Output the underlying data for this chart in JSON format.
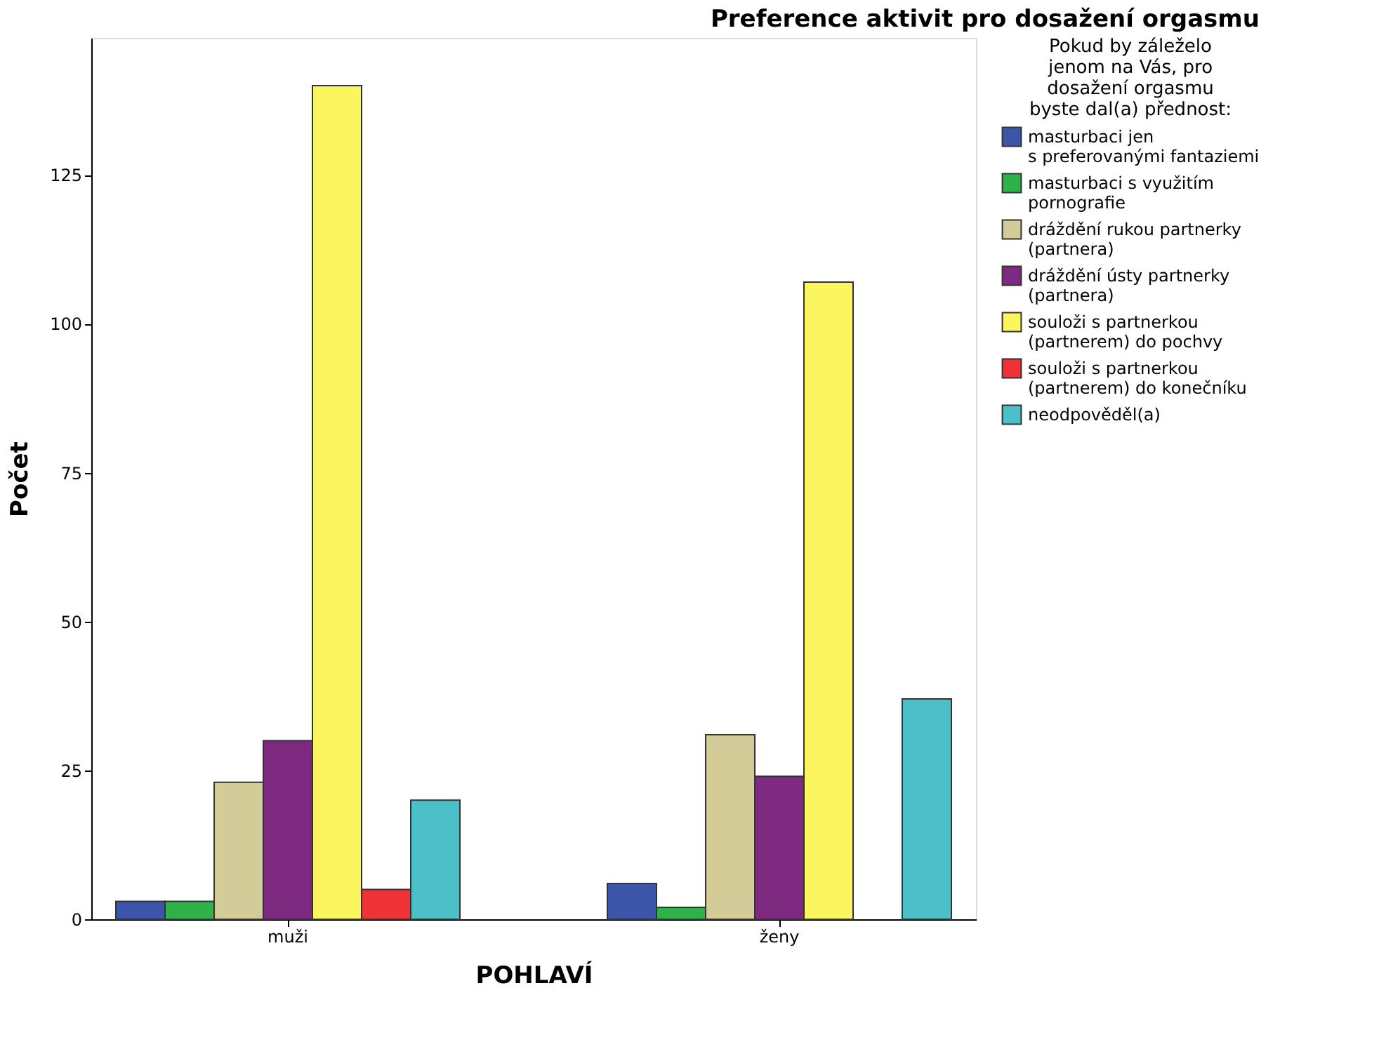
{
  "chart_data": {
    "type": "bar",
    "title": "Preference aktivit pro dosažení orgasmu",
    "xlabel": "POHLAVÍ",
    "ylabel": "Počet",
    "legend_title": "Pokud by záleželo\njenom na Vás, pro\ndosažení orgasmu\nbyste dal(a) přednost:",
    "categories": [
      "muži",
      "ženy"
    ],
    "series": [
      {
        "name": "masturbaci jen\ns preferovanými fantaziemi",
        "color": "#3b55a8",
        "values": [
          3,
          6
        ]
      },
      {
        "name": "masturbaci s využitím\npornografie",
        "color": "#2fb24a",
        "values": [
          3,
          2
        ]
      },
      {
        "name": "dráždění rukou partnerky\n(partnera)",
        "color": "#d3cc98",
        "values": [
          23,
          31
        ]
      },
      {
        "name": "dráždění ústy partnerky\n(partnera)",
        "color": "#7e2a80",
        "values": [
          30,
          24
        ]
      },
      {
        "name": "souloži s partnerkou\n(partnerem) do pochvy",
        "color": "#fbf65e",
        "values": [
          140,
          107
        ]
      },
      {
        "name": "souloži s partnerkou\n(partnerem) do konečníku",
        "color": "#ee3236",
        "values": [
          5,
          null
        ]
      },
      {
        "name": "neodpověděl(a)",
        "color": "#4bc0c8",
        "values": [
          20,
          37
        ]
      }
    ],
    "ylim": [
      0,
      148
    ],
    "yticks": [
      0,
      25,
      50,
      75,
      100,
      125
    ],
    "grid": false,
    "legend": "top right"
  }
}
